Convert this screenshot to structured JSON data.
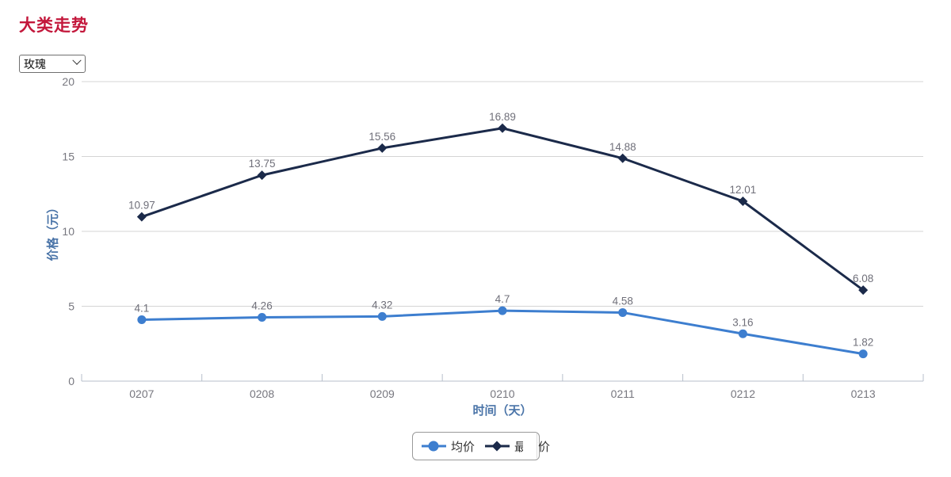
{
  "page": {
    "title": "大类走势",
    "title_color": "#c3173b"
  },
  "controls": {
    "category_select": {
      "value": "玫瑰"
    }
  },
  "chart_data": {
    "type": "line",
    "categories": [
      "0207",
      "0208",
      "0209",
      "0210",
      "0211",
      "0212",
      "0213"
    ],
    "series": [
      {
        "name": "均价",
        "values": [
          4.1,
          4.26,
          4.32,
          4.7,
          4.58,
          3.16,
          1.82
        ],
        "color": "#3d7ecf",
        "marker": "circle"
      },
      {
        "name": "最高价",
        "values": [
          10.97,
          13.75,
          15.56,
          16.89,
          14.88,
          12.01,
          6.08
        ],
        "color": "#1b2a4a",
        "marker": "diamond"
      }
    ],
    "xlabel": "时间（天）",
    "ylabel": "价格（元）",
    "ylim": [
      0,
      20
    ],
    "yticks": [
      0,
      5,
      10,
      15,
      20
    ],
    "grid": true,
    "legend_position": "bottom",
    "label_color": "#70707a",
    "tick_color": "#77777f",
    "grid_color": "#d4d4d4",
    "axis_line_color": "#b7bfcb"
  },
  "legend": {
    "items": [
      {
        "label": "均价"
      },
      {
        "label": "最高价"
      }
    ]
  }
}
